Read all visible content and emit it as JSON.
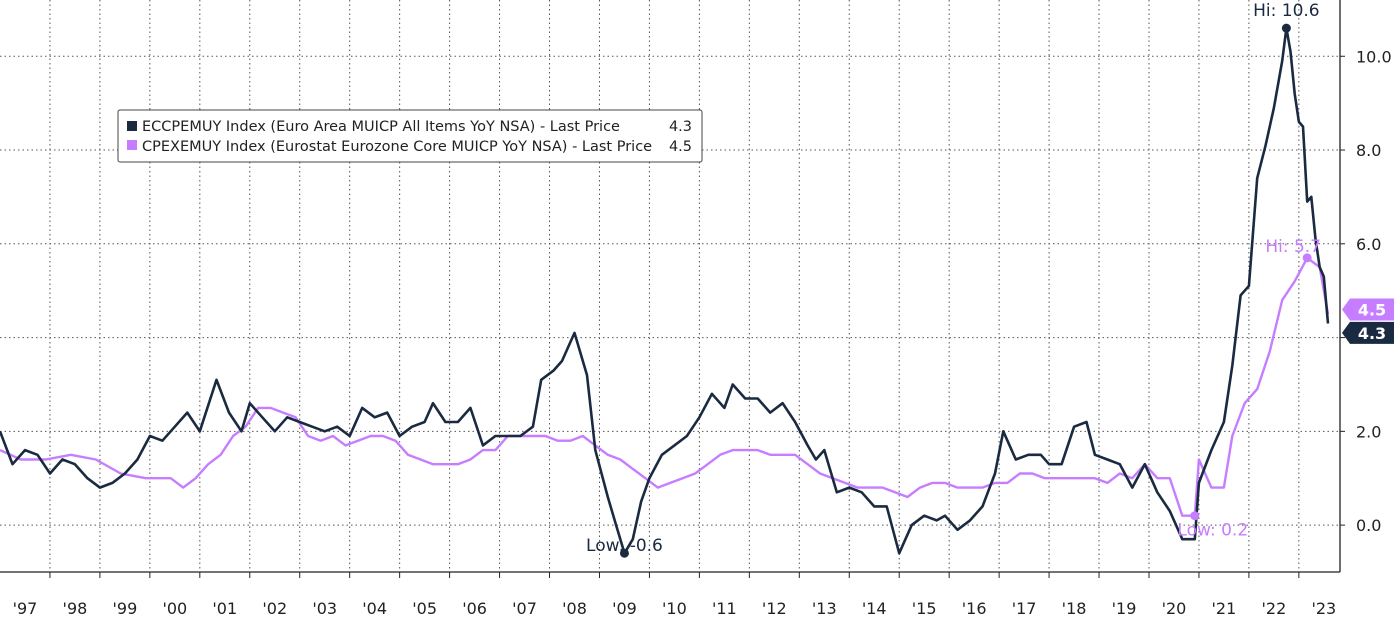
{
  "chart_data": {
    "type": "line",
    "x_start": "1997-01",
    "x_end": "2023-08",
    "ylim": [
      -1.0,
      11.2
    ],
    "y_ticks": [
      "0.0",
      "2.0",
      "4.0",
      "6.0",
      "8.0",
      "10.0"
    ],
    "x_tick_labels": [
      "'97",
      "'98",
      "'99",
      "'00",
      "'01",
      "'02",
      "'03",
      "'04",
      "'05",
      "'06",
      "'07",
      "'08",
      "'09",
      "'10",
      "'11",
      "'12",
      "'13",
      "'14",
      "'15",
      "'16",
      "'17",
      "'18",
      "'19",
      "'20",
      "'21",
      "'22",
      "'23"
    ],
    "grid": true,
    "legend_position": "top-left",
    "series": [
      {
        "name": "ECCPEMUY Index (Euro Area MUICP All Items YoY NSA) - Last Price",
        "legend_value": "4.3",
        "last_label": "4.3",
        "color": "#1a2a40",
        "points": [
          [
            "1997-01",
            2.0
          ],
          [
            "1997-04",
            1.3
          ],
          [
            "1997-07",
            1.6
          ],
          [
            "1997-10",
            1.5
          ],
          [
            "1998-01",
            1.1
          ],
          [
            "1998-04",
            1.4
          ],
          [
            "1998-07",
            1.3
          ],
          [
            "1998-10",
            1.0
          ],
          [
            "1999-01",
            0.8
          ],
          [
            "1999-04",
            0.9
          ],
          [
            "1999-07",
            1.1
          ],
          [
            "1999-10",
            1.4
          ],
          [
            "2000-01",
            1.9
          ],
          [
            "2000-04",
            1.8
          ],
          [
            "2000-07",
            2.1
          ],
          [
            "2000-10",
            2.4
          ],
          [
            "2001-01",
            2.0
          ],
          [
            "2001-05",
            3.1
          ],
          [
            "2001-08",
            2.4
          ],
          [
            "2001-11",
            2.0
          ],
          [
            "2002-01",
            2.6
          ],
          [
            "2002-04",
            2.3
          ],
          [
            "2002-07",
            2.0
          ],
          [
            "2002-10",
            2.3
          ],
          [
            "2003-01",
            2.2
          ],
          [
            "2003-04",
            2.1
          ],
          [
            "2003-07",
            2.0
          ],
          [
            "2003-10",
            2.1
          ],
          [
            "2004-01",
            1.9
          ],
          [
            "2004-04",
            2.5
          ],
          [
            "2004-07",
            2.3
          ],
          [
            "2004-10",
            2.4
          ],
          [
            "2005-01",
            1.9
          ],
          [
            "2005-04",
            2.1
          ],
          [
            "2005-07",
            2.2
          ],
          [
            "2005-09",
            2.6
          ],
          [
            "2005-12",
            2.2
          ],
          [
            "2006-03",
            2.2
          ],
          [
            "2006-06",
            2.5
          ],
          [
            "2006-09",
            1.7
          ],
          [
            "2006-12",
            1.9
          ],
          [
            "2007-03",
            1.9
          ],
          [
            "2007-06",
            1.9
          ],
          [
            "2007-09",
            2.1
          ],
          [
            "2007-11",
            3.1
          ],
          [
            "2008-02",
            3.3
          ],
          [
            "2008-04",
            3.5
          ],
          [
            "2008-07",
            4.1
          ],
          [
            "2008-10",
            3.2
          ],
          [
            "2008-12",
            1.6
          ],
          [
            "2009-03",
            0.6
          ],
          [
            "2009-05",
            0.0
          ],
          [
            "2009-07",
            -0.6
          ],
          [
            "2009-09",
            -0.3
          ],
          [
            "2009-11",
            0.5
          ],
          [
            "2010-01",
            1.0
          ],
          [
            "2010-04",
            1.5
          ],
          [
            "2010-07",
            1.7
          ],
          [
            "2010-10",
            1.9
          ],
          [
            "2011-01",
            2.3
          ],
          [
            "2011-04",
            2.8
          ],
          [
            "2011-07",
            2.5
          ],
          [
            "2011-09",
            3.0
          ],
          [
            "2011-12",
            2.7
          ],
          [
            "2012-03",
            2.7
          ],
          [
            "2012-06",
            2.4
          ],
          [
            "2012-09",
            2.6
          ],
          [
            "2012-12",
            2.2
          ],
          [
            "2013-03",
            1.7
          ],
          [
            "2013-05",
            1.4
          ],
          [
            "2013-07",
            1.6
          ],
          [
            "2013-10",
            0.7
          ],
          [
            "2014-01",
            0.8
          ],
          [
            "2014-04",
            0.7
          ],
          [
            "2014-07",
            0.4
          ],
          [
            "2014-10",
            0.4
          ],
          [
            "2015-01",
            -0.6
          ],
          [
            "2015-04",
            0.0
          ],
          [
            "2015-07",
            0.2
          ],
          [
            "2015-10",
            0.1
          ],
          [
            "2015-12",
            0.2
          ],
          [
            "2016-03",
            -0.1
          ],
          [
            "2016-06",
            0.1
          ],
          [
            "2016-09",
            0.4
          ],
          [
            "2016-12",
            1.1
          ],
          [
            "2017-02",
            2.0
          ],
          [
            "2017-05",
            1.4
          ],
          [
            "2017-08",
            1.5
          ],
          [
            "2017-11",
            1.5
          ],
          [
            "2018-01",
            1.3
          ],
          [
            "2018-04",
            1.3
          ],
          [
            "2018-07",
            2.1
          ],
          [
            "2018-10",
            2.2
          ],
          [
            "2018-12",
            1.5
          ],
          [
            "2019-03",
            1.4
          ],
          [
            "2019-06",
            1.3
          ],
          [
            "2019-09",
            0.8
          ],
          [
            "2019-12",
            1.3
          ],
          [
            "2020-03",
            0.7
          ],
          [
            "2020-06",
            0.3
          ],
          [
            "2020-09",
            -0.3
          ],
          [
            "2020-12",
            -0.3
          ],
          [
            "2021-01",
            0.9
          ],
          [
            "2021-04",
            1.6
          ],
          [
            "2021-07",
            2.2
          ],
          [
            "2021-09",
            3.4
          ],
          [
            "2021-11",
            4.9
          ],
          [
            "2021-12",
            5.0
          ],
          [
            "2022-01",
            5.1
          ],
          [
            "2022-03",
            7.4
          ],
          [
            "2022-05",
            8.1
          ],
          [
            "2022-07",
            8.9
          ],
          [
            "2022-09",
            9.9
          ],
          [
            "2022-10",
            10.6
          ],
          [
            "2022-11",
            10.1
          ],
          [
            "2022-12",
            9.2
          ],
          [
            "2023-01",
            8.6
          ],
          [
            "2023-02",
            8.5
          ],
          [
            "2023-03",
            6.9
          ],
          [
            "2023-04",
            7.0
          ],
          [
            "2023-05",
            6.1
          ],
          [
            "2023-06",
            5.5
          ],
          [
            "2023-07",
            5.3
          ],
          [
            "2023-08",
            4.3
          ]
        ],
        "high": {
          "label": "Hi: 10.6",
          "date": "2022-10",
          "value": 10.6
        },
        "low": {
          "label": "Low: -0.6",
          "date": "2009-07",
          "value": -0.6
        }
      },
      {
        "name": "CPEXEMUY Index (Eurostat Eurozone Core MUICP YoY NSA) - Last Price",
        "legend_value": "4.5",
        "last_label": "4.5",
        "color": "#c77dff",
        "points": [
          [
            "1997-01",
            1.6
          ],
          [
            "1997-06",
            1.4
          ],
          [
            "1997-12",
            1.4
          ],
          [
            "1998-06",
            1.5
          ],
          [
            "1998-12",
            1.4
          ],
          [
            "1999-06",
            1.1
          ],
          [
            "1999-12",
            1.0
          ],
          [
            "2000-06",
            1.0
          ],
          [
            "2000-09",
            0.8
          ],
          [
            "2000-12",
            1.0
          ],
          [
            "2001-03",
            1.3
          ],
          [
            "2001-06",
            1.5
          ],
          [
            "2001-09",
            1.9
          ],
          [
            "2001-12",
            2.1
          ],
          [
            "2002-03",
            2.5
          ],
          [
            "2002-06",
            2.5
          ],
          [
            "2002-09",
            2.4
          ],
          [
            "2002-12",
            2.3
          ],
          [
            "2003-03",
            1.9
          ],
          [
            "2003-06",
            1.8
          ],
          [
            "2003-09",
            1.9
          ],
          [
            "2003-12",
            1.7
          ],
          [
            "2004-03",
            1.8
          ],
          [
            "2004-06",
            1.9
          ],
          [
            "2004-09",
            1.9
          ],
          [
            "2004-12",
            1.8
          ],
          [
            "2005-03",
            1.5
          ],
          [
            "2005-06",
            1.4
          ],
          [
            "2005-09",
            1.3
          ],
          [
            "2005-12",
            1.3
          ],
          [
            "2006-03",
            1.3
          ],
          [
            "2006-06",
            1.4
          ],
          [
            "2006-09",
            1.6
          ],
          [
            "2006-12",
            1.6
          ],
          [
            "2007-03",
            1.9
          ],
          [
            "2007-06",
            1.9
          ],
          [
            "2007-09",
            1.9
          ],
          [
            "2007-12",
            1.9
          ],
          [
            "2008-03",
            1.8
          ],
          [
            "2008-06",
            1.8
          ],
          [
            "2008-09",
            1.9
          ],
          [
            "2008-12",
            1.7
          ],
          [
            "2009-03",
            1.5
          ],
          [
            "2009-06",
            1.4
          ],
          [
            "2009-09",
            1.2
          ],
          [
            "2009-12",
            1.0
          ],
          [
            "2010-03",
            0.8
          ],
          [
            "2010-06",
            0.9
          ],
          [
            "2010-09",
            1.0
          ],
          [
            "2010-12",
            1.1
          ],
          [
            "2011-03",
            1.3
          ],
          [
            "2011-06",
            1.5
          ],
          [
            "2011-09",
            1.6
          ],
          [
            "2011-12",
            1.6
          ],
          [
            "2012-03",
            1.6
          ],
          [
            "2012-06",
            1.5
          ],
          [
            "2012-09",
            1.5
          ],
          [
            "2012-12",
            1.5
          ],
          [
            "2013-03",
            1.3
          ],
          [
            "2013-06",
            1.1
          ],
          [
            "2013-09",
            1.0
          ],
          [
            "2013-12",
            0.9
          ],
          [
            "2014-03",
            0.8
          ],
          [
            "2014-06",
            0.8
          ],
          [
            "2014-09",
            0.8
          ],
          [
            "2014-12",
            0.7
          ],
          [
            "2015-03",
            0.6
          ],
          [
            "2015-06",
            0.8
          ],
          [
            "2015-09",
            0.9
          ],
          [
            "2015-12",
            0.9
          ],
          [
            "2016-03",
            0.8
          ],
          [
            "2016-06",
            0.8
          ],
          [
            "2016-09",
            0.8
          ],
          [
            "2016-12",
            0.9
          ],
          [
            "2017-03",
            0.9
          ],
          [
            "2017-06",
            1.1
          ],
          [
            "2017-09",
            1.1
          ],
          [
            "2017-12",
            1.0
          ],
          [
            "2018-03",
            1.0
          ],
          [
            "2018-06",
            1.0
          ],
          [
            "2018-09",
            1.0
          ],
          [
            "2018-12",
            1.0
          ],
          [
            "2019-03",
            0.9
          ],
          [
            "2019-06",
            1.1
          ],
          [
            "2019-09",
            1.0
          ],
          [
            "2019-12",
            1.3
          ],
          [
            "2020-03",
            1.0
          ],
          [
            "2020-06",
            1.0
          ],
          [
            "2020-09",
            0.2
          ],
          [
            "2020-12",
            0.2
          ],
          [
            "2021-01",
            1.4
          ],
          [
            "2021-04",
            0.8
          ],
          [
            "2021-07",
            0.8
          ],
          [
            "2021-09",
            1.9
          ],
          [
            "2021-12",
            2.6
          ],
          [
            "2022-03",
            2.9
          ],
          [
            "2022-06",
            3.7
          ],
          [
            "2022-09",
            4.8
          ],
          [
            "2022-12",
            5.2
          ],
          [
            "2023-03",
            5.7
          ],
          [
            "2023-06",
            5.5
          ],
          [
            "2023-08",
            4.5
          ]
        ],
        "high": {
          "label": "Hi: 5.7",
          "date": "2023-03",
          "value": 5.7
        },
        "low": {
          "label": "Low: 0.2",
          "date": "2020-12",
          "value": 0.2
        }
      }
    ]
  }
}
